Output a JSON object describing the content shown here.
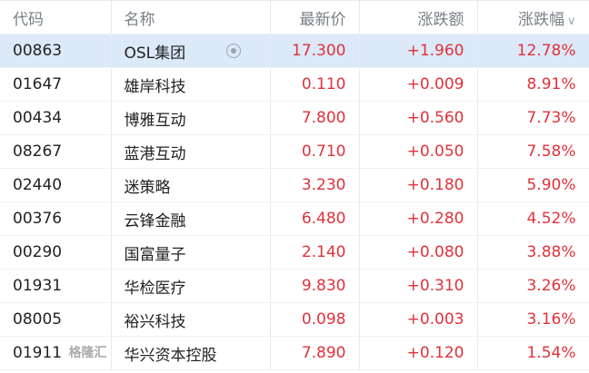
{
  "headers": [
    "代码",
    "名称",
    "最新价",
    "涨跌额",
    "涨跌幅"
  ],
  "sort_icon": "chevron-down-icon",
  "watermark": "格隆汇",
  "colors": {
    "up": "#e0323a",
    "selected_row": "#dbe9f9"
  },
  "rows": [
    {
      "code": "00863",
      "name": "OSL集团",
      "price": "17.300",
      "change": "+1.960",
      "pct": "12.78%",
      "selected": true
    },
    {
      "code": "01647",
      "name": "雄岸科技",
      "price": "0.110",
      "change": "+0.009",
      "pct": "8.91%"
    },
    {
      "code": "00434",
      "name": "博雅互动",
      "price": "7.800",
      "change": "+0.560",
      "pct": "7.73%"
    },
    {
      "code": "08267",
      "name": "蓝港互动",
      "price": "0.710",
      "change": "+0.050",
      "pct": "7.58%"
    },
    {
      "code": "02440",
      "name": "迷策略",
      "price": "3.230",
      "change": "+0.180",
      "pct": "5.90%"
    },
    {
      "code": "00376",
      "name": "云锋金融",
      "price": "6.480",
      "change": "+0.280",
      "pct": "4.52%"
    },
    {
      "code": "00290",
      "name": "国富量子",
      "price": "2.140",
      "change": "+0.080",
      "pct": "3.88%"
    },
    {
      "code": "01931",
      "name": "华检医疗",
      "price": "9.830",
      "change": "+0.310",
      "pct": "3.26%"
    },
    {
      "code": "08005",
      "name": "裕兴科技",
      "price": "0.098",
      "change": "+0.003",
      "pct": "3.16%"
    },
    {
      "code": "01911",
      "name": "华兴资本控股",
      "price": "7.890",
      "change": "+0.120",
      "pct": "1.54%"
    }
  ]
}
